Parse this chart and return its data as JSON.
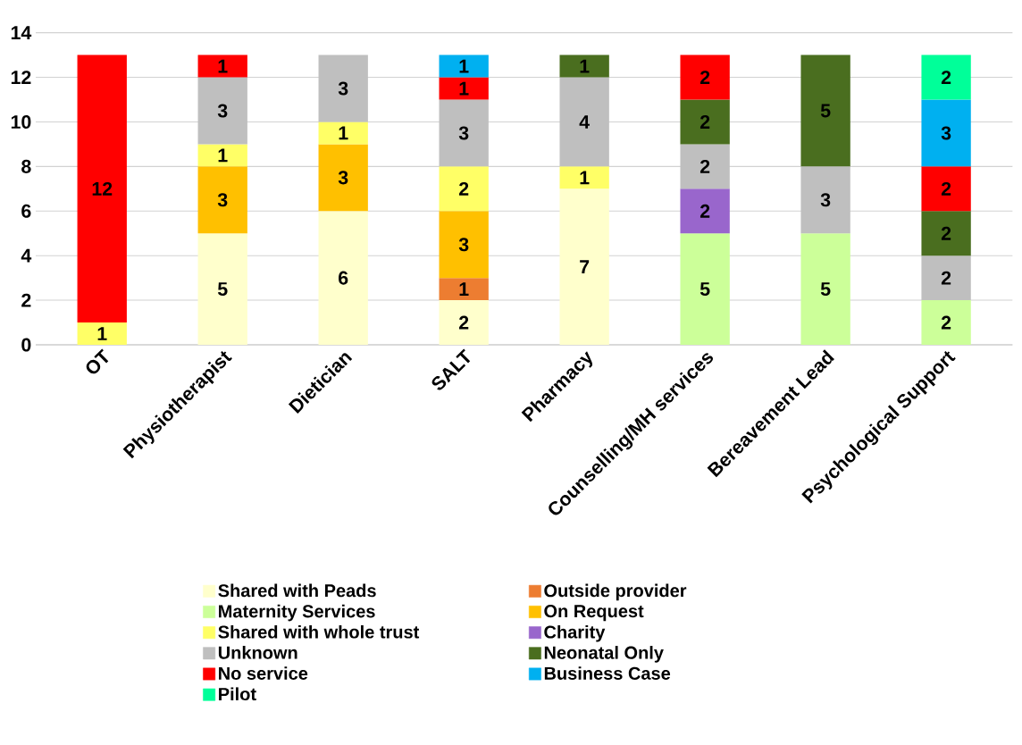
{
  "chart_data": {
    "type": "bar",
    "stacked": true,
    "data_labels": true,
    "grid": "y",
    "legend": "bottom",
    "categories": [
      "OT",
      "Physiotherapist",
      "Dietician",
      "SALT",
      "Pharmacy",
      "Counselling/MH services",
      "Bereavement Lead",
      "Psychological Support"
    ],
    "ylim": [
      0,
      14
    ],
    "yticks": [
      0,
      2,
      4,
      6,
      8,
      10,
      12,
      14
    ],
    "series": [
      {
        "name": "Shared with Peads",
        "color": "#ffffcc",
        "values": [
          null,
          5,
          6,
          2,
          7,
          null,
          null,
          null
        ]
      },
      {
        "name": "Outside provider",
        "color": "#ed7d31",
        "values": [
          null,
          null,
          null,
          1,
          null,
          null,
          null,
          null
        ]
      },
      {
        "name": "Maternity Services",
        "color": "#ccff99",
        "values": [
          null,
          null,
          null,
          null,
          null,
          5,
          5,
          2
        ]
      },
      {
        "name": "On Request",
        "color": "#ffc000",
        "values": [
          null,
          3,
          3,
          3,
          null,
          null,
          null,
          null
        ]
      },
      {
        "name": "Shared with whole trust",
        "color": "#ffff66",
        "values": [
          1,
          1,
          1,
          2,
          1,
          null,
          null,
          null
        ]
      },
      {
        "name": "Charity",
        "color": "#9966cc",
        "values": [
          null,
          null,
          null,
          null,
          null,
          2,
          null,
          null
        ]
      },
      {
        "name": "Unknown",
        "color": "#bfbfbf",
        "values": [
          null,
          3,
          3,
          3,
          4,
          2,
          3,
          2
        ]
      },
      {
        "name": "Neonatal Only",
        "color": "#4a6e1f",
        "values": [
          null,
          null,
          null,
          null,
          1,
          2,
          5,
          2
        ]
      },
      {
        "name": "No service",
        "color": "#ff0000",
        "values": [
          12,
          1,
          null,
          1,
          null,
          2,
          null,
          2
        ]
      },
      {
        "name": "Business Case",
        "color": "#00b0f0",
        "values": [
          null,
          null,
          null,
          1,
          null,
          null,
          null,
          3
        ]
      },
      {
        "name": "Pilot",
        "color": "#00ff99",
        "values": [
          null,
          null,
          null,
          null,
          null,
          null,
          null,
          2
        ]
      }
    ]
  }
}
